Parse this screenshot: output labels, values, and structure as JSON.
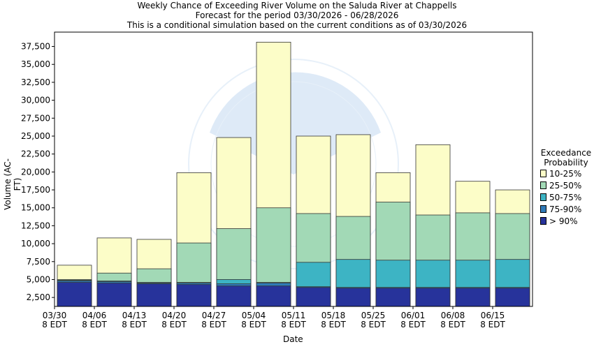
{
  "titles": {
    "line1": "Weekly Chance of Exceeding River Volume on the Saluda River at Chappells",
    "line2": "Forecast for the period 03/30/2026 - 06/28/2026",
    "line3": "This is a conditional simulation based on the current conditions as of 03/30/2026"
  },
  "chart_data": {
    "type": "bar",
    "stacked": true,
    "xlabel": "Date",
    "ylabel": "Volume (AC-FT)",
    "ylim": [
      1250,
      39500
    ],
    "yticks": [
      "2,500",
      "5,000",
      "7,500",
      "10,000",
      "12,500",
      "15,000",
      "17,500",
      "20,000",
      "22,500",
      "25,000",
      "27,500",
      "30,000",
      "32,500",
      "35,000",
      "37,500"
    ],
    "ytick_values": [
      2500,
      5000,
      7500,
      10000,
      12500,
      15000,
      17500,
      20000,
      22500,
      25000,
      27500,
      30000,
      32500,
      35000,
      37500
    ],
    "xticks": [
      {
        "date": "03/30",
        "tz": "8 EDT"
      },
      {
        "date": "04/06",
        "tz": "8 EDT"
      },
      {
        "date": "04/13",
        "tz": "8 EDT"
      },
      {
        "date": "04/20",
        "tz": "8 EDT"
      },
      {
        "date": "04/27",
        "tz": "8 EDT"
      },
      {
        "date": "05/04",
        "tz": "8 EDT"
      },
      {
        "date": "05/11",
        "tz": "8 EDT"
      },
      {
        "date": "05/18",
        "tz": "8 EDT"
      },
      {
        "date": "05/25",
        "tz": "8 EDT"
      },
      {
        "date": "06/01",
        "tz": "8 EDT"
      },
      {
        "date": "06/08",
        "tz": "8 EDT"
      },
      {
        "date": "06/15",
        "tz": "8 EDT"
      }
    ],
    "legend_title": [
      "Exceedance",
      "Probability"
    ],
    "series": [
      {
        "name": "> 90%",
        "color": "#27339b",
        "tops": [
          4600,
          4500,
          4400,
          4300,
          4100,
          4100,
          3900,
          3800,
          3800,
          3800,
          3800,
          3800
        ]
      },
      {
        "name": "75-90%",
        "color": "#2f7ab8",
        "tops": [
          4800,
          4700,
          4500,
          4500,
          4400,
          4500,
          4000,
          3900,
          3900,
          3900,
          3900,
          3900
        ]
      },
      {
        "name": "50-75%",
        "color": "#3db4c4",
        "tops": [
          4900,
          4800,
          4600,
          4600,
          5000,
          4600,
          7400,
          7800,
          7700,
          7700,
          7700,
          7800
        ]
      },
      {
        "name": "25-50%",
        "color": "#a2d9b6",
        "tops": [
          5000,
          5900,
          6500,
          10100,
          12100,
          15000,
          14200,
          13800,
          15800,
          14000,
          14300,
          14200
        ]
      },
      {
        "name": "10-25%",
        "color": "#fcfdc8",
        "tops": [
          7000,
          10800,
          10600,
          19900,
          24800,
          38100,
          25000,
          25200,
          19900,
          23800,
          18700,
          17500
        ]
      }
    ]
  }
}
